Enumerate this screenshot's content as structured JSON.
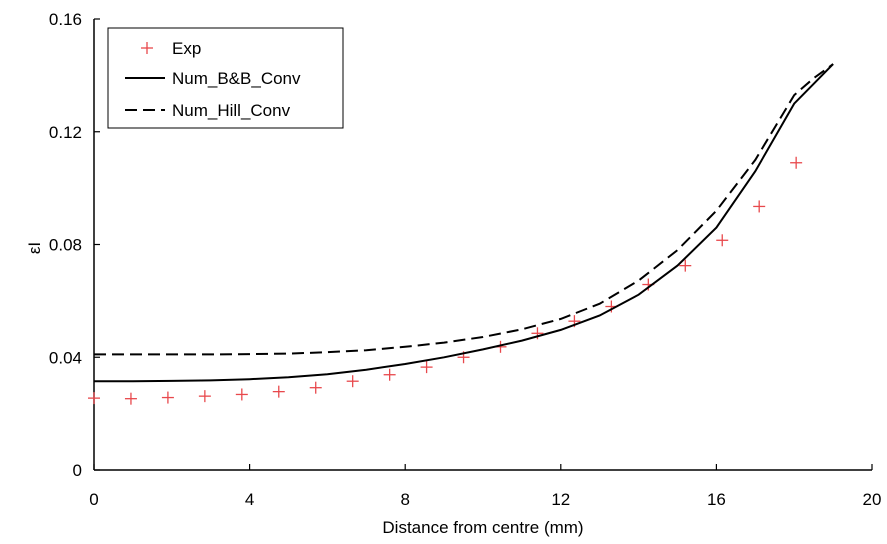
{
  "chart_data": {
    "type": "line",
    "xlabel": "Distance from centre (mm)",
    "ylabel": "εI",
    "xlim": [
      0,
      20
    ],
    "ylim": [
      0,
      0.16
    ],
    "x_ticks": [
      "0",
      "4",
      "8",
      "12",
      "16",
      "20"
    ],
    "y_ticks": [
      "0",
      "0.04",
      "0.08",
      "0.12",
      "0.16"
    ],
    "legend_position": "top-left",
    "series": [
      {
        "name": "Exp",
        "style": "marker-plus",
        "color": "#e8484c",
        "x": [
          0.0,
          0.95,
          1.9,
          2.85,
          3.8,
          4.75,
          5.7,
          6.65,
          7.6,
          8.55,
          9.5,
          10.45,
          11.4,
          12.35,
          13.3,
          14.25,
          15.2,
          16.15,
          17.1,
          18.05
        ],
        "y": [
          0.0255,
          0.0253,
          0.0257,
          0.0262,
          0.0268,
          0.0278,
          0.0292,
          0.0315,
          0.0338,
          0.0365,
          0.04,
          0.0437,
          0.0485,
          0.0528,
          0.058,
          0.0658,
          0.0725,
          0.0815,
          0.0935,
          0.109
        ]
      },
      {
        "name": "Num_B&B_Conv",
        "style": "solid",
        "color": "#000000",
        "x": [
          0,
          1,
          2,
          3,
          4,
          5,
          6,
          7,
          8,
          9,
          10,
          11,
          12,
          13,
          14,
          15,
          16,
          17,
          18,
          18.5,
          19
        ],
        "y": [
          0.0315,
          0.0315,
          0.0316,
          0.0318,
          0.0322,
          0.0329,
          0.034,
          0.0356,
          0.0376,
          0.04,
          0.0428,
          0.0459,
          0.0497,
          0.0548,
          0.0622,
          0.0725,
          0.086,
          0.106,
          0.13,
          0.137,
          0.144
        ]
      },
      {
        "name": "Num_Hill_Conv",
        "style": "dashed",
        "color": "#000000",
        "x": [
          0,
          1,
          2,
          3,
          4,
          5,
          6,
          7,
          8,
          9,
          10,
          11,
          12,
          13,
          14,
          15,
          16,
          17,
          18,
          18.5,
          19
        ],
        "y": [
          0.041,
          0.041,
          0.041,
          0.041,
          0.0411,
          0.0413,
          0.0418,
          0.0425,
          0.0437,
          0.0452,
          0.0472,
          0.0499,
          0.0536,
          0.059,
          0.0672,
          0.078,
          0.092,
          0.11,
          0.133,
          0.139,
          0.144
        ]
      }
    ]
  }
}
